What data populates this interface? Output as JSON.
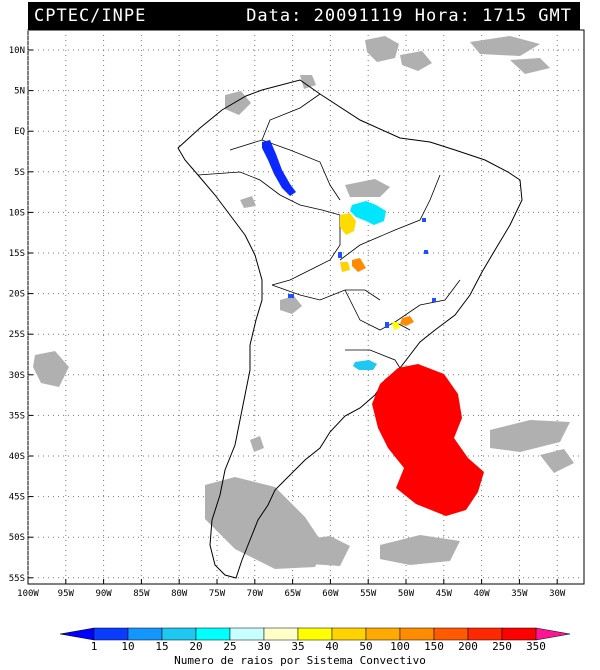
{
  "header": {
    "source": "CPTEC/INPE",
    "datetime": "Data: 20091119 Hora: 1715 GMT"
  },
  "map": {
    "lat_labels": [
      "10N",
      "5N",
      "EQ",
      "5S",
      "10S",
      "15S",
      "20S",
      "25S",
      "30S",
      "35S",
      "40S",
      "45S",
      "50S",
      "55S"
    ],
    "lon_labels": [
      "100W",
      "95W",
      "90W",
      "85W",
      "80W",
      "75W",
      "70W",
      "65W",
      "60W",
      "55W",
      "50W",
      "45W",
      "40W",
      "35W",
      "30W"
    ],
    "lat_range": [
      -56,
      12
    ],
    "lon_range": [
      -100,
      -27
    ],
    "grid": true,
    "colors": {
      "coastline": "#000000",
      "cloud": "#a8a8a8",
      "background": "#ffffff"
    }
  },
  "legend": {
    "ticks": [
      "1",
      "10",
      "15",
      "20",
      "25",
      "30",
      "35",
      "40",
      "50",
      "100",
      "150",
      "200",
      "250",
      "350"
    ],
    "colors": [
      "#0000ff",
      "#0a3cff",
      "#1496ff",
      "#1ec8f0",
      "#00ffff",
      "#c8ffff",
      "#ffffc8",
      "#ffff00",
      "#ffd200",
      "#ffaa00",
      "#ff8c00",
      "#ff5a00",
      "#ff2800",
      "#ff0000",
      "#ff1493"
    ],
    "caption": "Numero de raios por Sistema Convectivo"
  }
}
